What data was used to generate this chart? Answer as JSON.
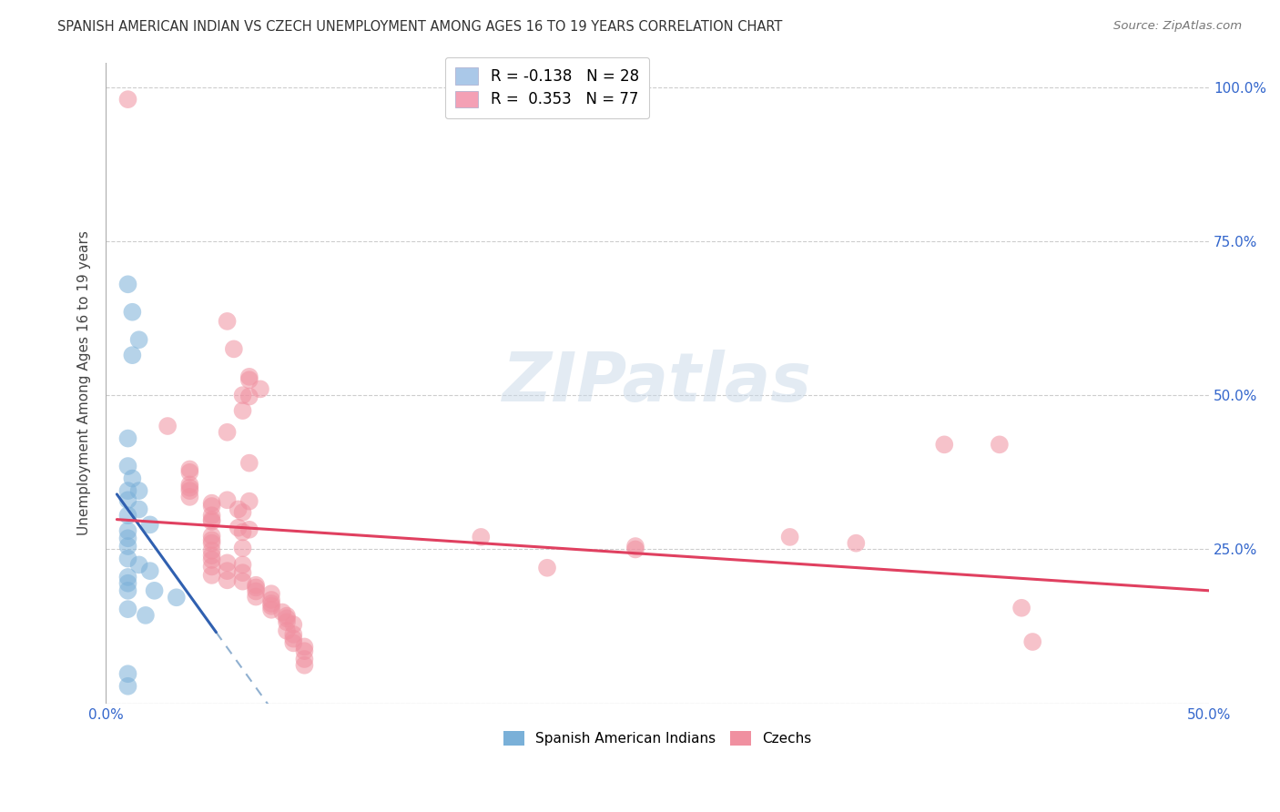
{
  "title": "SPANISH AMERICAN INDIAN VS CZECH UNEMPLOYMENT AMONG AGES 16 TO 19 YEARS CORRELATION CHART",
  "source": "Source: ZipAtlas.com",
  "ylabel_label": "Unemployment Among Ages 16 to 19 years",
  "xlim": [
    0.0,
    0.5
  ],
  "ylim": [
    0.0,
    1.04
  ],
  "legend_entries": [
    {
      "label": "R = -0.138   N = 28",
      "color": "#aac8e8"
    },
    {
      "label": "R =  0.353   N = 77",
      "color": "#f4a0b5"
    }
  ],
  "legend_label1": "Spanish American Indians",
  "legend_label2": "Czechs",
  "blue_color": "#7ab0d8",
  "pink_color": "#f090a0",
  "blue_line_color": "#3060b0",
  "pink_line_color": "#e04060",
  "dashed_line_color": "#90b0d0",
  "watermark": "ZIPatlas",
  "blue_points": [
    [
      0.01,
      0.68
    ],
    [
      0.012,
      0.635
    ],
    [
      0.015,
      0.59
    ],
    [
      0.012,
      0.565
    ],
    [
      0.01,
      0.43
    ],
    [
      0.01,
      0.385
    ],
    [
      0.012,
      0.365
    ],
    [
      0.01,
      0.345
    ],
    [
      0.015,
      0.345
    ],
    [
      0.01,
      0.33
    ],
    [
      0.015,
      0.315
    ],
    [
      0.01,
      0.305
    ],
    [
      0.02,
      0.29
    ],
    [
      0.01,
      0.28
    ],
    [
      0.01,
      0.268
    ],
    [
      0.01,
      0.255
    ],
    [
      0.01,
      0.235
    ],
    [
      0.015,
      0.225
    ],
    [
      0.02,
      0.215
    ],
    [
      0.01,
      0.205
    ],
    [
      0.01,
      0.195
    ],
    [
      0.01,
      0.183
    ],
    [
      0.022,
      0.183
    ],
    [
      0.032,
      0.172
    ],
    [
      0.01,
      0.153
    ],
    [
      0.018,
      0.143
    ],
    [
      0.01,
      0.048
    ],
    [
      0.01,
      0.028
    ]
  ],
  "pink_points": [
    [
      0.01,
      0.98
    ],
    [
      0.055,
      0.62
    ],
    [
      0.058,
      0.575
    ],
    [
      0.065,
      0.53
    ],
    [
      0.065,
      0.525
    ],
    [
      0.062,
      0.5
    ],
    [
      0.065,
      0.498
    ],
    [
      0.07,
      0.51
    ],
    [
      0.062,
      0.475
    ],
    [
      0.028,
      0.45
    ],
    [
      0.055,
      0.44
    ],
    [
      0.065,
      0.39
    ],
    [
      0.038,
      0.38
    ],
    [
      0.038,
      0.375
    ],
    [
      0.038,
      0.355
    ],
    [
      0.038,
      0.35
    ],
    [
      0.038,
      0.345
    ],
    [
      0.038,
      0.335
    ],
    [
      0.055,
      0.33
    ],
    [
      0.065,
      0.328
    ],
    [
      0.048,
      0.325
    ],
    [
      0.048,
      0.32
    ],
    [
      0.06,
      0.315
    ],
    [
      0.062,
      0.31
    ],
    [
      0.048,
      0.305
    ],
    [
      0.048,
      0.298
    ],
    [
      0.048,
      0.295
    ],
    [
      0.06,
      0.285
    ],
    [
      0.065,
      0.282
    ],
    [
      0.062,
      0.278
    ],
    [
      0.048,
      0.272
    ],
    [
      0.048,
      0.265
    ],
    [
      0.048,
      0.26
    ],
    [
      0.062,
      0.252
    ],
    [
      0.048,
      0.248
    ],
    [
      0.048,
      0.24
    ],
    [
      0.048,
      0.233
    ],
    [
      0.055,
      0.228
    ],
    [
      0.062,
      0.225
    ],
    [
      0.048,
      0.222
    ],
    [
      0.055,
      0.215
    ],
    [
      0.062,
      0.212
    ],
    [
      0.048,
      0.208
    ],
    [
      0.055,
      0.2
    ],
    [
      0.062,
      0.198
    ],
    [
      0.068,
      0.192
    ],
    [
      0.068,
      0.188
    ],
    [
      0.068,
      0.182
    ],
    [
      0.075,
      0.178
    ],
    [
      0.068,
      0.173
    ],
    [
      0.075,
      0.168
    ],
    [
      0.075,
      0.162
    ],
    [
      0.075,
      0.158
    ],
    [
      0.075,
      0.152
    ],
    [
      0.08,
      0.148
    ],
    [
      0.082,
      0.142
    ],
    [
      0.082,
      0.138
    ],
    [
      0.082,
      0.132
    ],
    [
      0.085,
      0.128
    ],
    [
      0.082,
      0.118
    ],
    [
      0.085,
      0.112
    ],
    [
      0.085,
      0.105
    ],
    [
      0.085,
      0.098
    ],
    [
      0.09,
      0.092
    ],
    [
      0.09,
      0.085
    ],
    [
      0.09,
      0.072
    ],
    [
      0.09,
      0.062
    ],
    [
      0.17,
      0.27
    ],
    [
      0.2,
      0.22
    ],
    [
      0.24,
      0.255
    ],
    [
      0.24,
      0.25
    ],
    [
      0.31,
      0.27
    ],
    [
      0.34,
      0.26
    ],
    [
      0.38,
      0.42
    ],
    [
      0.405,
      0.42
    ],
    [
      0.415,
      0.155
    ],
    [
      0.42,
      0.1
    ]
  ]
}
